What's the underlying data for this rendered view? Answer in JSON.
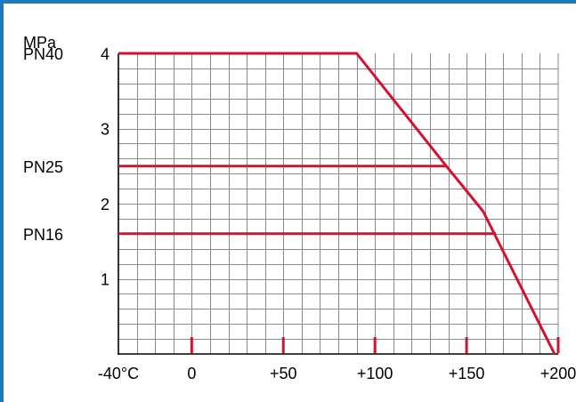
{
  "colors": {
    "frame": "#1a7abf",
    "curve": "#d4122f",
    "grid": "#8a8a8a",
    "axis": "#000000"
  },
  "chart_data": {
    "type": "line",
    "title": "",
    "ylabel": "MPa",
    "xlabel": "",
    "xlim": [
      -40,
      200
    ],
    "ylim": [
      0,
      4
    ],
    "grid": true,
    "x_tick_labels": [
      {
        "value": -40,
        "label": "-40°C"
      },
      {
        "value": 0,
        "label": "0"
      },
      {
        "value": 50,
        "label": "+50"
      },
      {
        "value": 100,
        "label": "+100"
      },
      {
        "value": 150,
        "label": "+150"
      },
      {
        "value": 200,
        "label": "+200"
      }
    ],
    "y_tick_labels": [
      {
        "value": 1,
        "label": "1"
      },
      {
        "value": 2,
        "label": "2"
      },
      {
        "value": 3,
        "label": "3"
      },
      {
        "value": 4,
        "label": "4"
      }
    ],
    "pressure_classes": [
      {
        "label": "PN40",
        "value": 4.0
      },
      {
        "label": "PN25",
        "value": 2.5
      },
      {
        "label": "PN16",
        "value": 1.6
      }
    ],
    "series": [
      {
        "name": "PN40",
        "x": [
          -40,
          90,
          139,
          159,
          198
        ],
        "y": [
          4.0,
          4.0,
          2.5,
          1.9,
          0
        ]
      },
      {
        "name": "PN25",
        "x": [
          -40,
          139
        ],
        "y": [
          2.5,
          2.5
        ]
      },
      {
        "name": "PN16",
        "x": [
          -40,
          166
        ],
        "y": [
          1.6,
          1.6
        ]
      }
    ]
  }
}
